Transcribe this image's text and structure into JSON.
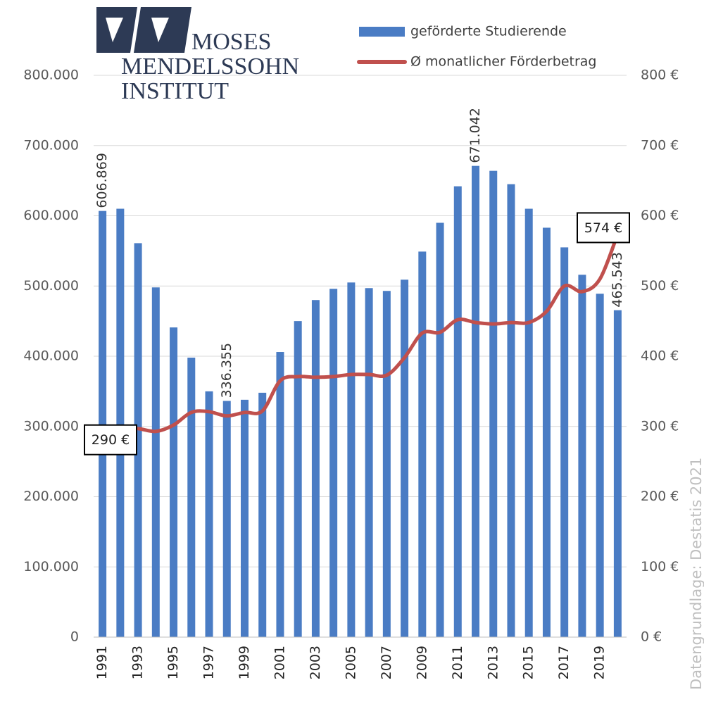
{
  "chart_data": {
    "type": "bar_line",
    "logo_text": [
      "MOSES",
      "MENDELSSOHN",
      "INSTITUT"
    ],
    "source": "Datengrundlage: Destatis 2021",
    "categories": [
      "1991",
      null,
      "1993",
      null,
      "1995",
      null,
      "1997",
      null,
      "1999",
      null,
      "2001",
      null,
      "2003",
      null,
      "2005",
      null,
      "2007",
      null,
      "2009",
      null,
      "2011",
      null,
      "2013",
      null,
      "2015",
      null,
      "2017",
      null,
      "2019",
      null
    ],
    "series": [
      {
        "name": "geförderte Studierende",
        "type": "bar",
        "color": "#4a7cc4",
        "axis": "y",
        "values": [
          606869,
          610000,
          561000,
          498000,
          441000,
          398000,
          350000,
          336355,
          338000,
          348000,
          406000,
          450000,
          480000,
          496000,
          505000,
          497000,
          493000,
          509000,
          549000,
          590000,
          642000,
          671042,
          664000,
          645000,
          610000,
          583000,
          555000,
          516000,
          489000,
          465543
        ],
        "value_labels": [
          "606.869",
          null,
          null,
          null,
          null,
          null,
          null,
          "336.355",
          null,
          null,
          null,
          null,
          null,
          null,
          null,
          null,
          null,
          null,
          null,
          null,
          null,
          "671.042",
          null,
          null,
          null,
          null,
          null,
          null,
          null,
          "465.543"
        ]
      },
      {
        "name": "Ø monatlicher Förderbetrag",
        "type": "line",
        "color": "#c0504d",
        "axis": "y2",
        "values": [
          290,
          298,
          297,
          293,
          302,
          320,
          321,
          315,
          320,
          322,
          365,
          371,
          370,
          371,
          374,
          374,
          373,
          398,
          433,
          434,
          452,
          448,
          446,
          448,
          448,
          464,
          500,
          492,
          510,
          574
        ],
        "value_labels": [
          "290 €",
          null,
          null,
          null,
          null,
          null,
          null,
          null,
          null,
          null,
          null,
          null,
          null,
          null,
          null,
          null,
          null,
          null,
          null,
          null,
          null,
          null,
          null,
          null,
          null,
          null,
          null,
          null,
          null,
          "574 €"
        ]
      }
    ],
    "ylim": [
      0,
      800000
    ],
    "yticks": [
      0,
      {
        "value": 100000,
        "label": "100.000"
      },
      {
        "value": 200000,
        "label": "200.000"
      },
      {
        "value": 300000,
        "label": "300.000"
      },
      {
        "value": 400000,
        "label": "400.000"
      },
      {
        "value": 500000,
        "label": "500.000"
      },
      {
        "value": 600000,
        "label": "600.000"
      },
      {
        "value": 700000,
        "label": "700.000"
      },
      {
        "value": 800000,
        "label": "800.000"
      }
    ],
    "y2lim": [
      0,
      800
    ],
    "y2ticks": [
      {
        "value": 0,
        "label": "0 €"
      },
      {
        "value": 100,
        "label": "100 €"
      },
      {
        "value": 200,
        "label": "200 €"
      },
      {
        "value": 300,
        "label": "300 €"
      },
      {
        "value": 400,
        "label": "400 €"
      },
      {
        "value": 500,
        "label": "500 €"
      },
      {
        "value": 600,
        "label": "600 €"
      },
      {
        "value": 700,
        "label": "700 €"
      },
      {
        "value": 800,
        "label": "800 €"
      }
    ],
    "grid": true,
    "legend": "top-right"
  }
}
